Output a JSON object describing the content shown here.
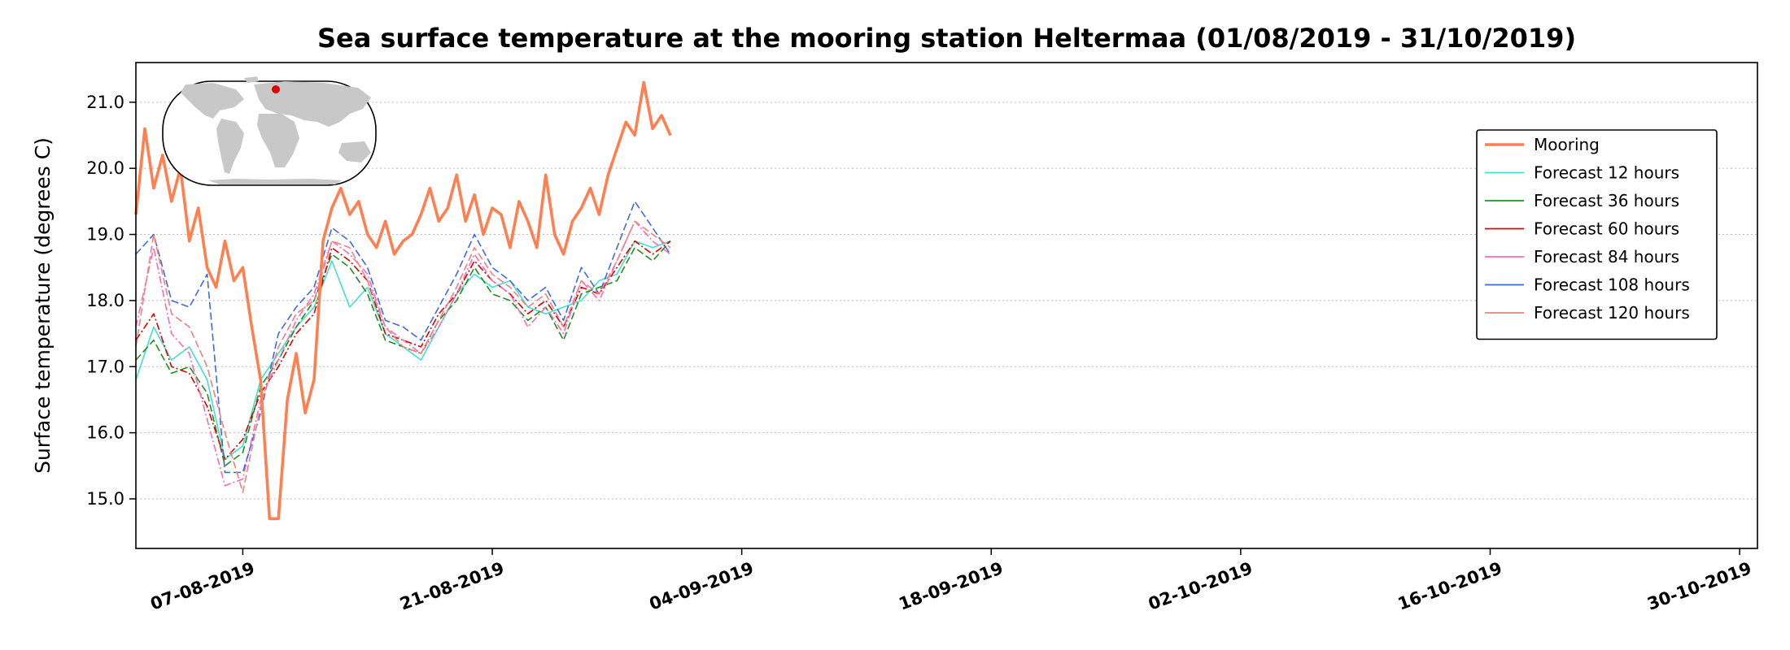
{
  "chart_data": {
    "type": "line",
    "title": "Sea surface temperature at the mooring station Heltermaa (01/08/2019 - 31/10/2019)",
    "xlabel": "",
    "ylabel": "Surface temperature (degrees C)",
    "xlim": [
      "2019-08-01",
      "2019-10-31"
    ],
    "ylim": [
      14.25,
      21.6
    ],
    "yticks": [
      15.0,
      16.0,
      17.0,
      18.0,
      19.0,
      20.0,
      21.0
    ],
    "ytick_labels": [
      "15.0",
      "16.0",
      "17.0",
      "18.0",
      "19.0",
      "20.0",
      "21.0"
    ],
    "xticks": [
      "2019-08-07",
      "2019-08-21",
      "2019-09-04",
      "2019-09-18",
      "2019-10-02",
      "2019-10-16",
      "2019-10-30"
    ],
    "xtick_labels": [
      "07-08-2019",
      "21-08-2019",
      "04-09-2019",
      "18-09-2019",
      "02-10-2019",
      "16-10-2019",
      "30-10-2019"
    ],
    "grid": "horizontal dotted",
    "legend_position": "upper right",
    "inset": "world map with red dot marking station location (top-left)",
    "series": [
      {
        "name": "Mooring",
        "color": "#ff7f50",
        "style": "solid-thick",
        "x": [
          "2019-08-01",
          "2019-08-01T12",
          "2019-08-02",
          "2019-08-02T12",
          "2019-08-03",
          "2019-08-03T12",
          "2019-08-04",
          "2019-08-04T12",
          "2019-08-05",
          "2019-08-05T12",
          "2019-08-06",
          "2019-08-06T12",
          "2019-08-07",
          "2019-08-07T12",
          "2019-08-08",
          "2019-08-08T12",
          "2019-08-09",
          "2019-08-09T12",
          "2019-08-10",
          "2019-08-10T12",
          "2019-08-11",
          "2019-08-11T12",
          "2019-08-12",
          "2019-08-12T12",
          "2019-08-13",
          "2019-08-13T12",
          "2019-08-14",
          "2019-08-14T12",
          "2019-08-15",
          "2019-08-15T12",
          "2019-08-16",
          "2019-08-16T12",
          "2019-08-17",
          "2019-08-17T12",
          "2019-08-18",
          "2019-08-18T12",
          "2019-08-19",
          "2019-08-19T12",
          "2019-08-20",
          "2019-08-20T12",
          "2019-08-21",
          "2019-08-21T12",
          "2019-08-22",
          "2019-08-22T12",
          "2019-08-23",
          "2019-08-23T12",
          "2019-08-24",
          "2019-08-24T12",
          "2019-08-25",
          "2019-08-25T12",
          "2019-08-26",
          "2019-08-26T12",
          "2019-08-27",
          "2019-08-27T12",
          "2019-08-28",
          "2019-08-28T12",
          "2019-08-29",
          "2019-08-29T12",
          "2019-08-30",
          "2019-08-30T12",
          "2019-08-31"
        ],
        "values": [
          19.3,
          20.6,
          19.7,
          20.2,
          19.5,
          20.0,
          18.9,
          19.4,
          18.5,
          18.2,
          18.9,
          18.3,
          18.5,
          17.6,
          16.8,
          14.7,
          14.7,
          16.5,
          17.2,
          16.3,
          16.8,
          18.9,
          19.4,
          19.7,
          19.3,
          19.5,
          19.0,
          18.8,
          19.2,
          18.7,
          18.9,
          19.0,
          19.3,
          19.7,
          19.2,
          19.4,
          19.9,
          19.2,
          19.6,
          19.0,
          19.4,
          19.3,
          18.8,
          19.5,
          19.2,
          18.8,
          19.9,
          19.0,
          18.7,
          19.2,
          19.4,
          19.7,
          19.3,
          19.9,
          20.3,
          20.7,
          20.5,
          21.3,
          20.6,
          20.8,
          20.5
        ]
      },
      {
        "name": "Forecast 12 hours",
        "color": "#40e0d0",
        "style": "solid",
        "x": [
          "2019-08-01",
          "2019-08-02",
          "2019-08-03",
          "2019-08-04",
          "2019-08-05",
          "2019-08-06",
          "2019-08-07",
          "2019-08-08",
          "2019-08-09",
          "2019-08-10",
          "2019-08-11",
          "2019-08-12",
          "2019-08-13",
          "2019-08-14",
          "2019-08-15",
          "2019-08-16",
          "2019-08-17",
          "2019-08-18",
          "2019-08-19",
          "2019-08-20",
          "2019-08-21",
          "2019-08-22",
          "2019-08-23",
          "2019-08-24",
          "2019-08-25",
          "2019-08-26",
          "2019-08-27",
          "2019-08-28",
          "2019-08-29",
          "2019-08-30",
          "2019-08-31"
        ],
        "values": [
          16.8,
          17.6,
          17.1,
          17.3,
          16.8,
          15.6,
          15.8,
          16.8,
          17.2,
          17.6,
          17.9,
          18.6,
          17.9,
          18.2,
          17.5,
          17.3,
          17.1,
          17.6,
          18.1,
          18.4,
          18.2,
          18.3,
          17.9,
          17.8,
          17.9,
          18.0,
          18.3,
          18.4,
          18.9,
          18.8,
          18.9
        ]
      },
      {
        "name": "Forecast 36 hours",
        "color": "#228b22",
        "style": "dashed",
        "x": [
          "2019-08-01",
          "2019-08-02",
          "2019-08-03",
          "2019-08-04",
          "2019-08-05",
          "2019-08-06",
          "2019-08-07",
          "2019-08-08",
          "2019-08-09",
          "2019-08-10",
          "2019-08-11",
          "2019-08-12",
          "2019-08-13",
          "2019-08-14",
          "2019-08-15",
          "2019-08-16",
          "2019-08-17",
          "2019-08-18",
          "2019-08-19",
          "2019-08-20",
          "2019-08-21",
          "2019-08-22",
          "2019-08-23",
          "2019-08-24",
          "2019-08-25",
          "2019-08-26",
          "2019-08-27",
          "2019-08-28",
          "2019-08-29",
          "2019-08-30",
          "2019-08-31"
        ],
        "values": [
          17.1,
          17.4,
          16.9,
          17.0,
          16.6,
          15.5,
          15.7,
          16.7,
          17.1,
          17.6,
          18.0,
          18.7,
          18.5,
          18.1,
          17.4,
          17.3,
          17.2,
          17.7,
          18.0,
          18.5,
          18.1,
          18.0,
          17.7,
          17.9,
          17.4,
          18.1,
          18.2,
          18.3,
          18.8,
          18.6,
          18.9
        ]
      },
      {
        "name": "Forecast 60 hours",
        "color": "#dd0000",
        "style": "dashdot",
        "x": [
          "2019-08-01",
          "2019-08-02",
          "2019-08-03",
          "2019-08-04",
          "2019-08-05",
          "2019-08-06",
          "2019-08-07",
          "2019-08-08",
          "2019-08-09",
          "2019-08-10",
          "2019-08-11",
          "2019-08-12",
          "2019-08-13",
          "2019-08-14",
          "2019-08-15",
          "2019-08-16",
          "2019-08-17",
          "2019-08-18",
          "2019-08-19",
          "2019-08-20",
          "2019-08-21",
          "2019-08-22",
          "2019-08-23",
          "2019-08-24",
          "2019-08-25",
          "2019-08-26",
          "2019-08-27",
          "2019-08-28",
          "2019-08-29",
          "2019-08-30",
          "2019-08-31"
        ],
        "values": [
          17.4,
          17.8,
          17.0,
          16.9,
          16.4,
          15.6,
          15.9,
          16.6,
          17.0,
          17.5,
          17.8,
          18.8,
          18.6,
          18.3,
          17.5,
          17.4,
          17.3,
          17.8,
          18.1,
          18.6,
          18.3,
          18.1,
          17.8,
          18.0,
          17.6,
          18.2,
          18.1,
          18.5,
          18.9,
          18.7,
          18.9
        ]
      },
      {
        "name": "Forecast 84 hours",
        "color": "#ff69b4",
        "style": "dashdot",
        "x": [
          "2019-08-01",
          "2019-08-02",
          "2019-08-03",
          "2019-08-04",
          "2019-08-05",
          "2019-08-06",
          "2019-08-07",
          "2019-08-08",
          "2019-08-09",
          "2019-08-10",
          "2019-08-11",
          "2019-08-12",
          "2019-08-13",
          "2019-08-14",
          "2019-08-15",
          "2019-08-16",
          "2019-08-17",
          "2019-08-18",
          "2019-08-19",
          "2019-08-20",
          "2019-08-21",
          "2019-08-22",
          "2019-08-23",
          "2019-08-24",
          "2019-08-25",
          "2019-08-26",
          "2019-08-27",
          "2019-08-28",
          "2019-08-29",
          "2019-08-30",
          "2019-08-31"
        ],
        "values": [
          17.6,
          18.8,
          17.5,
          17.2,
          16.2,
          15.2,
          15.3,
          16.5,
          17.1,
          17.7,
          18.1,
          18.9,
          18.7,
          18.4,
          17.6,
          17.4,
          17.2,
          17.6,
          18.1,
          18.7,
          18.3,
          18.1,
          17.6,
          17.9,
          17.5,
          18.3,
          18.0,
          18.6,
          19.2,
          18.9,
          18.7
        ]
      },
      {
        "name": "Forecast 108 hours",
        "color": "#4169e1",
        "style": "dashed",
        "x": [
          "2019-08-01",
          "2019-08-02",
          "2019-08-03",
          "2019-08-04",
          "2019-08-05",
          "2019-08-06",
          "2019-08-07",
          "2019-08-08",
          "2019-08-09",
          "2019-08-10",
          "2019-08-11",
          "2019-08-12",
          "2019-08-13",
          "2019-08-14",
          "2019-08-15",
          "2019-08-16",
          "2019-08-17",
          "2019-08-18",
          "2019-08-19",
          "2019-08-20",
          "2019-08-21",
          "2019-08-22",
          "2019-08-23",
          "2019-08-24",
          "2019-08-25",
          "2019-08-26",
          "2019-08-27",
          "2019-08-28",
          "2019-08-29",
          "2019-08-30",
          "2019-08-31"
        ],
        "values": [
          18.7,
          19.0,
          18.0,
          17.9,
          18.4,
          15.4,
          15.4,
          16.3,
          17.5,
          17.9,
          18.2,
          19.1,
          18.9,
          18.5,
          17.7,
          17.6,
          17.4,
          17.9,
          18.4,
          19.0,
          18.5,
          18.3,
          18.0,
          18.2,
          17.7,
          18.5,
          18.1,
          18.8,
          19.5,
          19.1,
          18.7
        ]
      },
      {
        "name": "Forecast 120 hours",
        "color": "#f08080",
        "style": "dashed",
        "x": [
          "2019-08-01",
          "2019-08-02",
          "2019-08-03",
          "2019-08-04",
          "2019-08-05",
          "2019-08-06",
          "2019-08-07",
          "2019-08-08",
          "2019-08-09",
          "2019-08-10",
          "2019-08-11",
          "2019-08-12",
          "2019-08-13",
          "2019-08-14",
          "2019-08-15",
          "2019-08-16",
          "2019-08-17",
          "2019-08-18",
          "2019-08-19",
          "2019-08-20",
          "2019-08-21",
          "2019-08-22",
          "2019-08-23",
          "2019-08-24",
          "2019-08-25",
          "2019-08-26",
          "2019-08-27",
          "2019-08-28",
          "2019-08-29",
          "2019-08-30",
          "2019-08-31"
        ],
        "values": [
          17.3,
          19.0,
          17.8,
          17.6,
          17.0,
          16.0,
          15.1,
          16.4,
          17.3,
          17.8,
          18.0,
          18.9,
          18.8,
          18.3,
          17.6,
          17.3,
          17.2,
          17.7,
          18.2,
          18.8,
          18.4,
          18.2,
          17.9,
          18.1,
          17.6,
          18.3,
          18.1,
          18.6,
          19.2,
          19.0,
          18.8
        ]
      }
    ]
  }
}
